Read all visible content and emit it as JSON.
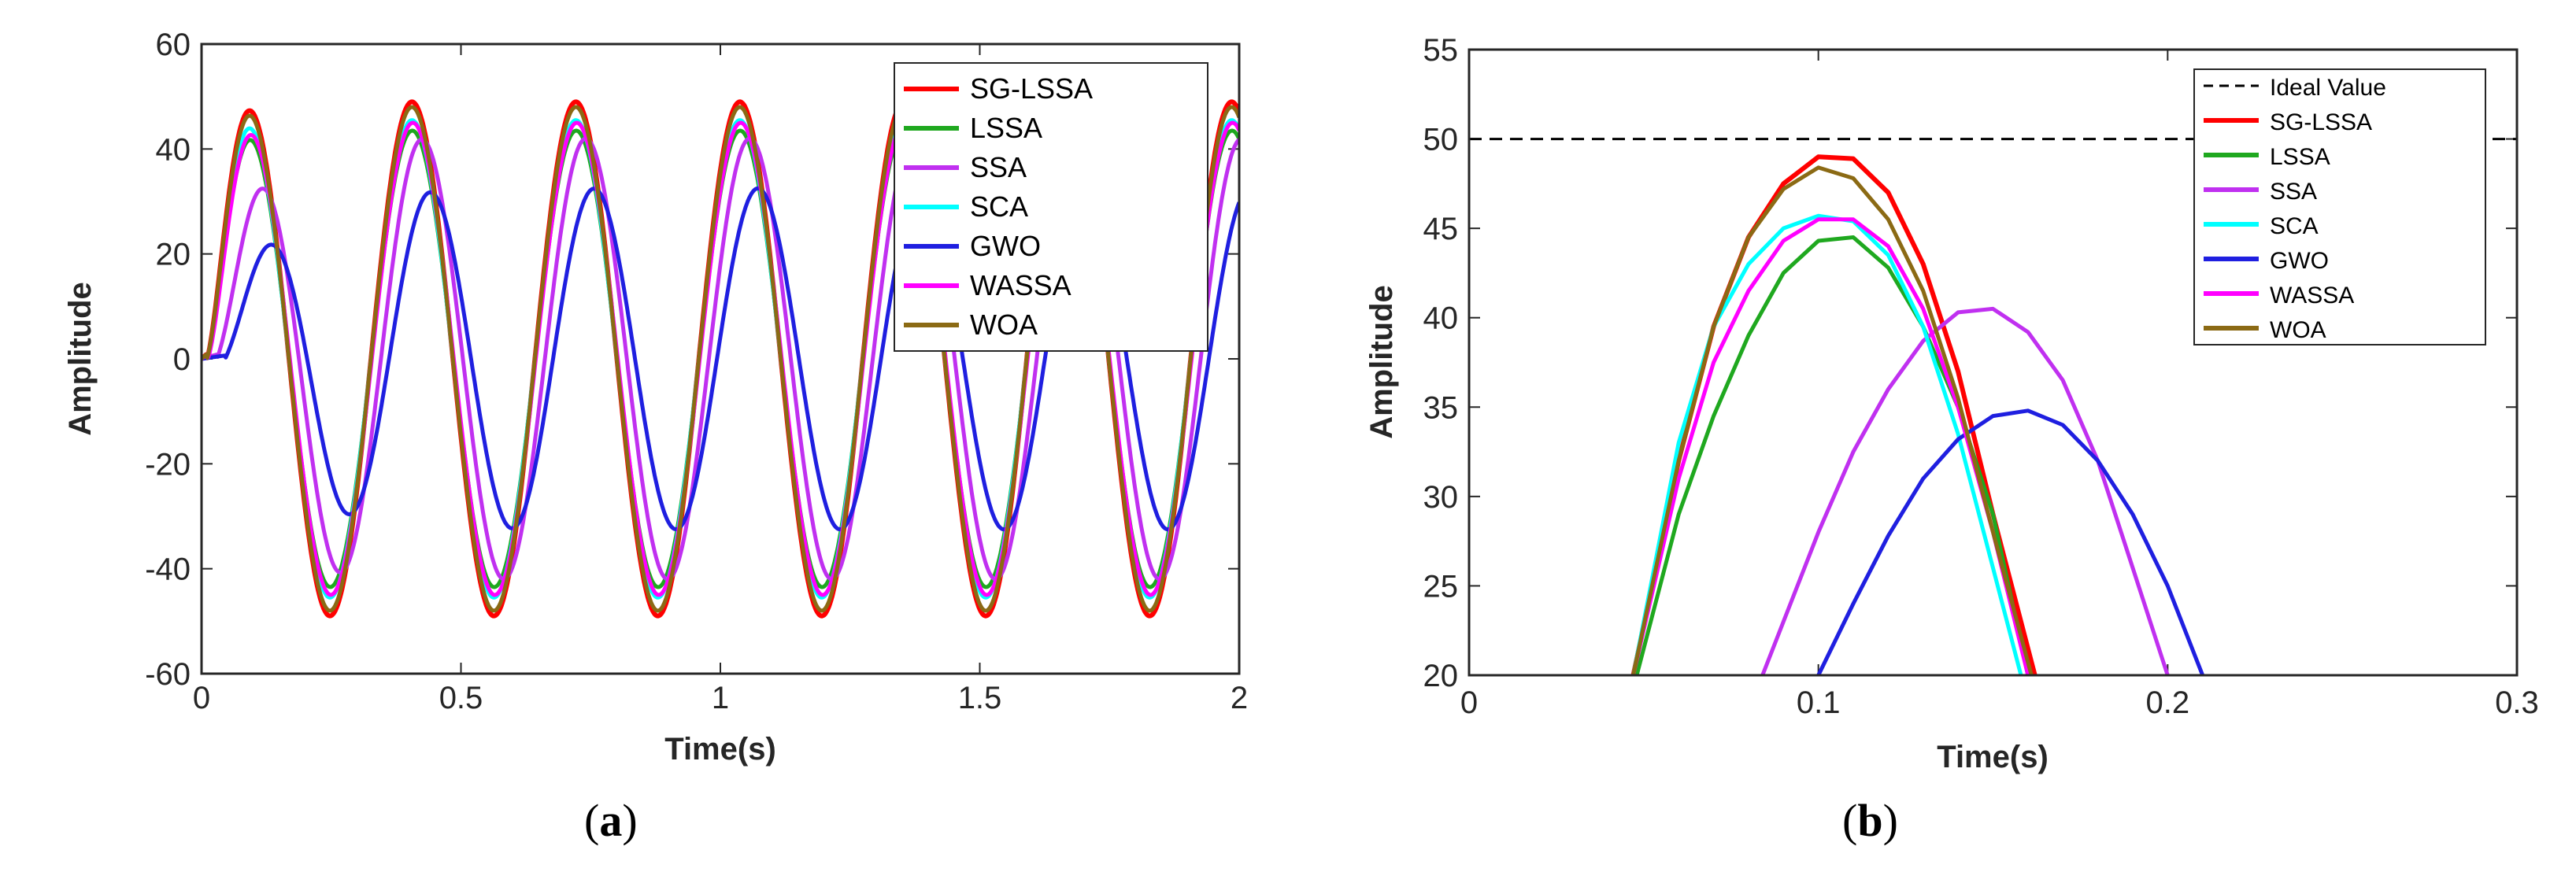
{
  "chart_data": [
    {
      "type": "line",
      "panel": "(a)",
      "panel_letter": "a",
      "xlabel": "Time(s)",
      "ylabel": "Amplitude",
      "xlim": [
        0,
        2
      ],
      "ylim": [
        -60,
        60
      ],
      "xticks": [
        0,
        0.5,
        1,
        1.5,
        2
      ],
      "xtick_labels": [
        "0",
        "0.5",
        "1",
        "1.5",
        "2"
      ],
      "yticks": [
        -60,
        -40,
        -20,
        0,
        20,
        40,
        60
      ],
      "ytick_labels": [
        "-60",
        "-40",
        "-20",
        "0",
        "20",
        "40",
        "60"
      ],
      "legend_position": "top-right",
      "series": [
        {
          "name": "SG-LSSA",
          "color": "#ff0000",
          "waveform": {
            "amplitude": 49,
            "period": 0.316,
            "delay": 0.03
          }
        },
        {
          "name": "LSSA",
          "color": "#1fa81f",
          "waveform": {
            "amplitude": 43.5,
            "period": 0.316,
            "delay": 0.032
          }
        },
        {
          "name": "SSA",
          "color": "#c030f0",
          "waveform": {
            "amplitude": 42,
            "period": 0.316,
            "delay": 0.085
          }
        },
        {
          "name": "SCA",
          "color": "#00ffff",
          "waveform": {
            "amplitude": 45.5,
            "period": 0.316,
            "delay": 0.03
          }
        },
        {
          "name": "GWO",
          "color": "#1f1fe0",
          "waveform": {
            "amplitude": 32.5,
            "period": 0.316,
            "delay": 0.13
          }
        },
        {
          "name": "WASSA",
          "color": "#ff00ff",
          "waveform": {
            "amplitude": 45,
            "period": 0.316,
            "delay": 0.035
          }
        },
        {
          "name": "WOA",
          "color": "#8b6a14",
          "waveform": {
            "amplitude": 48,
            "period": 0.316,
            "delay": 0.03
          }
        }
      ]
    },
    {
      "type": "line",
      "panel": "(b)",
      "panel_letter": "b",
      "xlabel": "Time(s)",
      "ylabel": "Amplitude",
      "xlim": [
        0,
        0.3
      ],
      "ylim": [
        20,
        55
      ],
      "xticks": [
        0,
        0.1,
        0.2,
        0.3
      ],
      "xtick_labels": [
        "0",
        "0.1",
        "0.2",
        "0.3"
      ],
      "yticks": [
        20,
        25,
        30,
        35,
        40,
        45,
        50,
        55
      ],
      "ytick_labels": [
        "20",
        "25",
        "30",
        "35",
        "40",
        "45",
        "50",
        "55"
      ],
      "legend_position": "top-right",
      "reference_line": {
        "name": "Ideal Value",
        "y": 50,
        "color": "#000000"
      },
      "series": [
        {
          "name": "SG-LSSA",
          "color": "#ff0000",
          "x": [
            0.047,
            0.06,
            0.07,
            0.08,
            0.09,
            0.1,
            0.11,
            0.12,
            0.13,
            0.14,
            0.15,
            0.162
          ],
          "y": [
            20,
            32,
            39.5,
            44.5,
            47.5,
            49,
            48.9,
            47,
            43,
            37,
            29,
            20
          ]
        },
        {
          "name": "LSSA",
          "color": "#1fa81f",
          "x": [
            0.048,
            0.06,
            0.07,
            0.08,
            0.09,
            0.1,
            0.11,
            0.12,
            0.13,
            0.14,
            0.15,
            0.16
          ],
          "y": [
            20,
            29,
            34.5,
            39,
            42.5,
            44.3,
            44.5,
            42.8,
            39.5,
            35,
            29,
            20
          ]
        },
        {
          "name": "SSA",
          "color": "#c030f0",
          "x": [
            0.084,
            0.1,
            0.11,
            0.12,
            0.13,
            0.14,
            0.15,
            0.16,
            0.17,
            0.18,
            0.19,
            0.2
          ],
          "y": [
            20,
            28,
            32.5,
            36,
            38.7,
            40.3,
            40.5,
            39.2,
            36.5,
            32,
            26,
            20
          ]
        },
        {
          "name": "SCA",
          "color": "#00ffff",
          "x": [
            0.047,
            0.06,
            0.07,
            0.08,
            0.09,
            0.1,
            0.11,
            0.12,
            0.13,
            0.14,
            0.15,
            0.158
          ],
          "y": [
            20,
            33,
            39.5,
            43,
            45,
            45.7,
            45.4,
            43.5,
            39.5,
            33.5,
            26,
            20
          ]
        },
        {
          "name": "GWO",
          "color": "#1f1fe0",
          "x": [
            0.1,
            0.11,
            0.12,
            0.13,
            0.14,
            0.15,
            0.16,
            0.17,
            0.18,
            0.19,
            0.2,
            0.21
          ],
          "y": [
            20,
            24,
            27.8,
            31,
            33.2,
            34.5,
            34.8,
            34,
            32,
            29,
            25,
            20
          ]
        },
        {
          "name": "WASSA",
          "color": "#ff00ff",
          "x": [
            0.047,
            0.06,
            0.07,
            0.08,
            0.09,
            0.1,
            0.11,
            0.12,
            0.13,
            0.14,
            0.15,
            0.16
          ],
          "y": [
            20,
            31,
            37.5,
            41.5,
            44.3,
            45.5,
            45.5,
            44,
            40.5,
            35,
            28,
            20
          ]
        },
        {
          "name": "WOA",
          "color": "#8b6a14",
          "x": [
            0.047,
            0.06,
            0.07,
            0.08,
            0.09,
            0.1,
            0.11,
            0.12,
            0.13,
            0.14,
            0.15,
            0.161
          ],
          "y": [
            20,
            32,
            39.5,
            44.5,
            47.2,
            48.4,
            47.8,
            45.5,
            41.5,
            35.5,
            28,
            20
          ]
        }
      ]
    }
  ]
}
